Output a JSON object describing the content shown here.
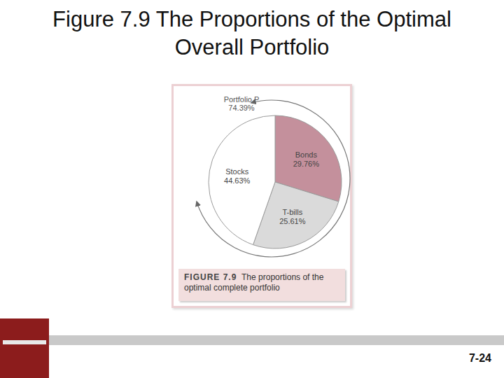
{
  "chart_data": {
    "type": "pie",
    "title": "Figure 7.9 The Proportions of the Optimal Overall Portfolio",
    "categories": [
      "Bonds",
      "T-bills",
      "Stocks"
    ],
    "values": [
      29.76,
      25.61,
      44.63
    ],
    "value_labels": [
      "29.76%",
      "25.61%",
      "44.63%"
    ],
    "colors": [
      "#c4909c",
      "#dadada",
      "#ffffff"
    ],
    "data_labels": true,
    "annotation": {
      "text": "Portfolio P",
      "value": 74.39,
      "value_label": "74.39%"
    },
    "caption": {
      "prefix": "FIGURE 7.9",
      "text": "The proportions of the optimal complete portfolio"
    }
  },
  "page_number": "7-24"
}
